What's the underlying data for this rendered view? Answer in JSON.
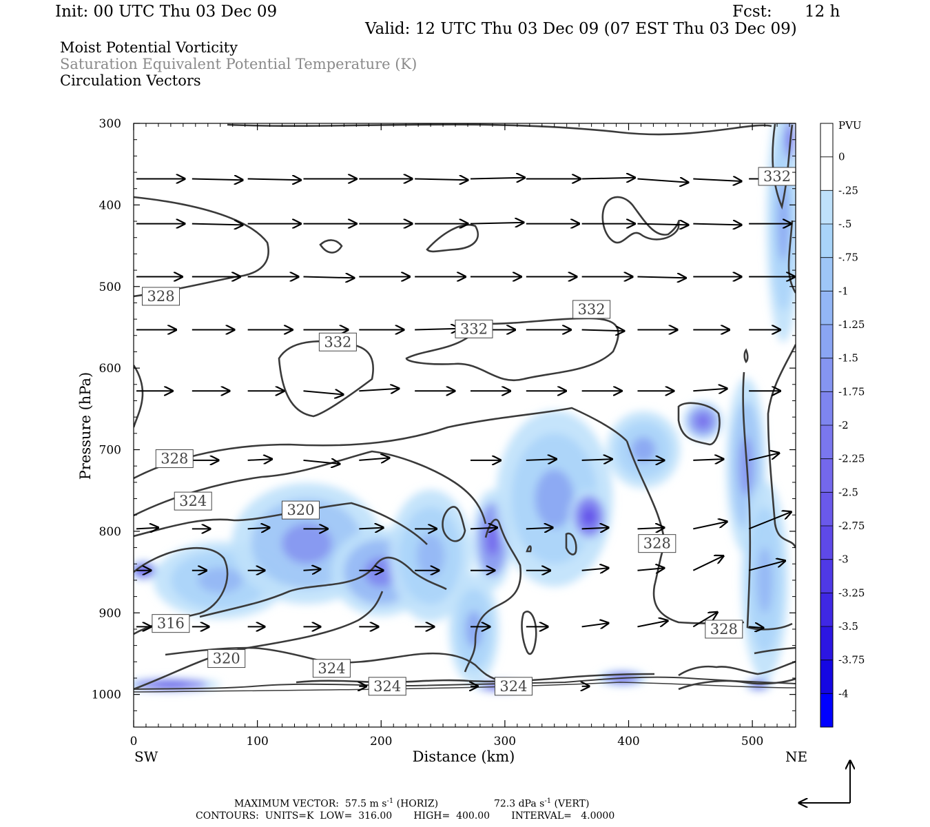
{
  "header": {
    "init": "Init: 00 UTC Thu 03 Dec 09",
    "fcst_label": "Fcst:",
    "fcst_value": "12 h",
    "valid": "Valid: 12 UTC Thu 03 Dec 09 (07 EST Thu 03 Dec 09)"
  },
  "legend_lines": [
    "Moist Potential Vorticity",
    "Saturation Equivalent Potential Temperature (K)",
    "Circulation Vectors"
  ],
  "colors": {
    "vector": "#000000",
    "contour": "#3a3a3a",
    "pv_light": "#bfe1fb",
    "pv_dark": "#0000ff"
  },
  "chart_data": {
    "type": "heatmap",
    "xlabel": "Distance (km)",
    "ylabel": "Pressure (hPa)",
    "xlim": [
      0,
      535
    ],
    "ylim": [
      1040,
      300
    ],
    "x_ticks": [
      0,
      100,
      200,
      300,
      400,
      500
    ],
    "y_ticks": [
      300,
      400,
      500,
      600,
      700,
      800,
      900,
      1000
    ],
    "x_end_labels": {
      "left": "SW",
      "right": "NE"
    },
    "colorbar": {
      "unit": "PVU",
      "labels": [
        "0",
        "-.25",
        "-.5",
        "-.75",
        "-1",
        "-1.25",
        "-1.5",
        "-1.75",
        "-2",
        "-2.25",
        "-2.5",
        "-2.75",
        "-3",
        "-3.25",
        "-3.5",
        "-3.75",
        "-4"
      ],
      "colors": [
        "#ffffff",
        "#ffffff",
        "#bfe1fb",
        "#a9d4f9",
        "#9ec6f7",
        "#93b6f5",
        "#8aa5f3",
        "#8595f1",
        "#7e85ef",
        "#7a77ee",
        "#7468ec",
        "#6a59ea",
        "#5e49e8",
        "#4f39e6",
        "#3f28e4",
        "#2c16e2",
        "#1507e2",
        "#0000ff"
      ]
    },
    "contour_labels": [
      {
        "text": "332",
        "x": 520,
        "p": 365
      },
      {
        "text": "328",
        "x": 22,
        "p": 512
      },
      {
        "text": "332",
        "x": 165,
        "p": 568
      },
      {
        "text": "332",
        "x": 275,
        "p": 552
      },
      {
        "text": "332",
        "x": 370,
        "p": 528
      },
      {
        "text": "328",
        "x": 33,
        "p": 711
      },
      {
        "text": "324",
        "x": 48,
        "p": 763
      },
      {
        "text": "320",
        "x": 135,
        "p": 774
      },
      {
        "text": "328",
        "x": 423,
        "p": 815
      },
      {
        "text": "316",
        "x": 30,
        "p": 913
      },
      {
        "text": "328",
        "x": 477,
        "p": 920
      },
      {
        "text": "320",
        "x": 75,
        "p": 956
      },
      {
        "text": "324",
        "x": 160,
        "p": 968
      },
      {
        "text": "324",
        "x": 205,
        "p": 990
      },
      {
        "text": "324",
        "x": 307,
        "p": 990
      }
    ],
    "pv_blobs": [
      {
        "x": 8,
        "p": 848,
        "rx": 9,
        "rp": 9,
        "level": 12
      },
      {
        "x": 70,
        "p": 860,
        "rx": 40,
        "rp": 35,
        "level": 4
      },
      {
        "x": 140,
        "p": 815,
        "rx": 45,
        "rp": 55,
        "level": 6
      },
      {
        "x": 200,
        "p": 850,
        "rx": 30,
        "rp": 40,
        "level": 7
      },
      {
        "x": 240,
        "p": 830,
        "rx": 25,
        "rp": 60,
        "level": 4
      },
      {
        "x": 290,
        "p": 810,
        "rx": 12,
        "rp": 45,
        "level": 9
      },
      {
        "x": 275,
        "p": 920,
        "rx": 15,
        "rp": 50,
        "level": 5
      },
      {
        "x": 340,
        "p": 760,
        "rx": 35,
        "rp": 80,
        "level": 5
      },
      {
        "x": 368,
        "p": 782,
        "rx": 12,
        "rp": 25,
        "level": 11
      },
      {
        "x": 412,
        "p": 700,
        "rx": 22,
        "rp": 35,
        "level": 5
      },
      {
        "x": 460,
        "p": 665,
        "rx": 12,
        "rp": 18,
        "level": 9
      },
      {
        "x": 495,
        "p": 720,
        "rx": 12,
        "rp": 80,
        "level": 6
      },
      {
        "x": 510,
        "p": 860,
        "rx": 14,
        "rp": 90,
        "level": 4
      },
      {
        "x": 525,
        "p": 420,
        "rx": 10,
        "rp": 110,
        "level": 5
      },
      {
        "x": 530,
        "p": 320,
        "rx": 4,
        "rp": 25,
        "level": 10
      },
      {
        "x": 30,
        "p": 988,
        "rx": 30,
        "rp": 6,
        "level": 12
      },
      {
        "x": 295,
        "p": 990,
        "rx": 15,
        "rp": 5,
        "level": 12
      },
      {
        "x": 395,
        "p": 980,
        "rx": 15,
        "rp": 7,
        "level": 10
      },
      {
        "x": 505,
        "p": 988,
        "rx": 8,
        "rp": 6,
        "level": 10
      }
    ],
    "vectors": [
      {
        "x": 0,
        "p": 368,
        "u": 40,
        "w": 0
      },
      {
        "x": 45,
        "p": 368,
        "u": 42,
        "w": -1
      },
      {
        "x": 90,
        "p": 368,
        "u": 44,
        "w": -1
      },
      {
        "x": 135,
        "p": 368,
        "u": 44,
        "w": 0
      },
      {
        "x": 180,
        "p": 368,
        "u": 44,
        "w": 0
      },
      {
        "x": 225,
        "p": 368,
        "u": 44,
        "w": -1
      },
      {
        "x": 270,
        "p": 368,
        "u": 45,
        "w": 1
      },
      {
        "x": 315,
        "p": 368,
        "u": 45,
        "w": 0
      },
      {
        "x": 360,
        "p": 368,
        "u": 44,
        "w": 1
      },
      {
        "x": 405,
        "p": 368,
        "u": 42,
        "w": -3
      },
      {
        "x": 450,
        "p": 368,
        "u": 40,
        "w": -2
      },
      {
        "x": 495,
        "p": 368,
        "u": 35,
        "w": 0
      },
      {
        "x": 0,
        "p": 423,
        "u": 40,
        "w": 0
      },
      {
        "x": 45,
        "p": 423,
        "u": 42,
        "w": -1
      },
      {
        "x": 90,
        "p": 423,
        "u": 44,
        "w": 0
      },
      {
        "x": 135,
        "p": 423,
        "u": 44,
        "w": 0
      },
      {
        "x": 180,
        "p": 423,
        "u": 44,
        "w": 0
      },
      {
        "x": 225,
        "p": 423,
        "u": 44,
        "w": 0
      },
      {
        "x": 270,
        "p": 423,
        "u": 44,
        "w": 1
      },
      {
        "x": 315,
        "p": 423,
        "u": 44,
        "w": 0
      },
      {
        "x": 360,
        "p": 423,
        "u": 44,
        "w": 0
      },
      {
        "x": 405,
        "p": 423,
        "u": 42,
        "w": -1
      },
      {
        "x": 450,
        "p": 423,
        "u": 40,
        "w": -1
      },
      {
        "x": 495,
        "p": 423,
        "u": 35,
        "w": 0
      },
      {
        "x": 0,
        "p": 488,
        "u": 38,
        "w": 0
      },
      {
        "x": 45,
        "p": 488,
        "u": 40,
        "w": 0
      },
      {
        "x": 90,
        "p": 488,
        "u": 42,
        "w": 0
      },
      {
        "x": 135,
        "p": 488,
        "u": 42,
        "w": -1
      },
      {
        "x": 180,
        "p": 488,
        "u": 42,
        "w": 0
      },
      {
        "x": 225,
        "p": 488,
        "u": 42,
        "w": 0
      },
      {
        "x": 270,
        "p": 488,
        "u": 42,
        "w": 0
      },
      {
        "x": 315,
        "p": 488,
        "u": 42,
        "w": 0
      },
      {
        "x": 360,
        "p": 488,
        "u": 42,
        "w": 0
      },
      {
        "x": 405,
        "p": 488,
        "u": 40,
        "w": -1
      },
      {
        "x": 450,
        "p": 488,
        "u": 40,
        "w": 0
      },
      {
        "x": 495,
        "p": 488,
        "u": 38,
        "w": 0
      },
      {
        "x": 0,
        "p": 553,
        "u": 33,
        "w": 0
      },
      {
        "x": 45,
        "p": 553,
        "u": 35,
        "w": 0
      },
      {
        "x": 90,
        "p": 553,
        "u": 37,
        "w": 0
      },
      {
        "x": 135,
        "p": 553,
        "u": 37,
        "w": 0
      },
      {
        "x": 180,
        "p": 553,
        "u": 37,
        "w": 0
      },
      {
        "x": 225,
        "p": 553,
        "u": 37,
        "w": 1
      },
      {
        "x": 270,
        "p": 553,
        "u": 37,
        "w": 0
      },
      {
        "x": 315,
        "p": 553,
        "u": 37,
        "w": 0
      },
      {
        "x": 360,
        "p": 553,
        "u": 35,
        "w": -1
      },
      {
        "x": 405,
        "p": 553,
        "u": 33,
        "w": 0
      },
      {
        "x": 450,
        "p": 553,
        "u": 30,
        "w": 0
      },
      {
        "x": 495,
        "p": 553,
        "u": 26,
        "w": 0
      },
      {
        "x": 0,
        "p": 628,
        "u": 30,
        "w": 0
      },
      {
        "x": 45,
        "p": 628,
        "u": 31,
        "w": 0
      },
      {
        "x": 90,
        "p": 628,
        "u": 30,
        "w": 0
      },
      {
        "x": 135,
        "p": 628,
        "u": 33,
        "w": -3
      },
      {
        "x": 180,
        "p": 628,
        "u": 33,
        "w": 2
      },
      {
        "x": 225,
        "p": 628,
        "u": 33,
        "w": 0
      },
      {
        "x": 270,
        "p": 628,
        "u": 33,
        "w": 0
      },
      {
        "x": 315,
        "p": 628,
        "u": 33,
        "w": 0
      },
      {
        "x": 360,
        "p": 628,
        "u": 33,
        "w": 0
      },
      {
        "x": 405,
        "p": 628,
        "u": 30,
        "w": 0
      },
      {
        "x": 450,
        "p": 628,
        "u": 28,
        "w": 2
      },
      {
        "x": 495,
        "p": 628,
        "u": 26,
        "w": 0
      },
      {
        "x": 45,
        "p": 713,
        "u": 22,
        "w": 0
      },
      {
        "x": 90,
        "p": 713,
        "u": 20,
        "w": 1
      },
      {
        "x": 135,
        "p": 713,
        "u": 30,
        "w": -3
      },
      {
        "x": 180,
        "p": 713,
        "u": 25,
        "w": 2
      },
      {
        "x": 270,
        "p": 713,
        "u": 25,
        "w": 0
      },
      {
        "x": 315,
        "p": 713,
        "u": 25,
        "w": 1
      },
      {
        "x": 360,
        "p": 713,
        "u": 25,
        "w": 1
      },
      {
        "x": 405,
        "p": 713,
        "u": 22,
        "w": 0
      },
      {
        "x": 450,
        "p": 713,
        "u": 25,
        "w": 1
      },
      {
        "x": 495,
        "p": 713,
        "u": 25,
        "w": 6
      },
      {
        "x": 0,
        "p": 797,
        "u": 18,
        "w": 1
      },
      {
        "x": 45,
        "p": 797,
        "u": 15,
        "w": 0
      },
      {
        "x": 90,
        "p": 797,
        "u": 18,
        "w": 1
      },
      {
        "x": 135,
        "p": 797,
        "u": 20,
        "w": 0
      },
      {
        "x": 180,
        "p": 797,
        "u": 20,
        "w": 1
      },
      {
        "x": 225,
        "p": 797,
        "u": 18,
        "w": 0
      },
      {
        "x": 270,
        "p": 797,
        "u": 22,
        "w": 1
      },
      {
        "x": 315,
        "p": 797,
        "u": 22,
        "w": 1
      },
      {
        "x": 360,
        "p": 797,
        "u": 22,
        "w": 1
      },
      {
        "x": 405,
        "p": 797,
        "u": 22,
        "w": 1
      },
      {
        "x": 450,
        "p": 797,
        "u": 28,
        "w": 6
      },
      {
        "x": 495,
        "p": 797,
        "u": 35,
        "w": 14
      },
      {
        "x": 0,
        "p": 848,
        "u": 12,
        "w": 0
      },
      {
        "x": 45,
        "p": 848,
        "u": 12,
        "w": 0
      },
      {
        "x": 90,
        "p": 848,
        "u": 14,
        "w": 0
      },
      {
        "x": 135,
        "p": 848,
        "u": 14,
        "w": 1
      },
      {
        "x": 180,
        "p": 848,
        "u": 20,
        "w": 0
      },
      {
        "x": 225,
        "p": 848,
        "u": 20,
        "w": 0
      },
      {
        "x": 270,
        "p": 848,
        "u": 20,
        "w": 0
      },
      {
        "x": 315,
        "p": 848,
        "u": 20,
        "w": 0
      },
      {
        "x": 360,
        "p": 848,
        "u": 22,
        "w": 2
      },
      {
        "x": 405,
        "p": 848,
        "u": 22,
        "w": 2
      },
      {
        "x": 450,
        "p": 848,
        "u": 25,
        "w": 12
      },
      {
        "x": 495,
        "p": 848,
        "u": 30,
        "w": 8
      },
      {
        "x": 0,
        "p": 917,
        "u": 12,
        "w": 0
      },
      {
        "x": 45,
        "p": 917,
        "u": 14,
        "w": 0
      },
      {
        "x": 90,
        "p": 917,
        "u": 14,
        "w": 0
      },
      {
        "x": 135,
        "p": 917,
        "u": 14,
        "w": 0
      },
      {
        "x": 180,
        "p": 917,
        "u": 16,
        "w": 0
      },
      {
        "x": 225,
        "p": 917,
        "u": 16,
        "w": 0
      },
      {
        "x": 270,
        "p": 917,
        "u": 16,
        "w": 0
      },
      {
        "x": 315,
        "p": 917,
        "u": 18,
        "w": 0
      },
      {
        "x": 360,
        "p": 917,
        "u": 22,
        "w": 3
      },
      {
        "x": 405,
        "p": 917,
        "u": 25,
        "w": 5
      },
      {
        "x": 450,
        "p": 917,
        "u": 20,
        "w": 12
      },
      {
        "x": 495,
        "p": 917,
        "u": 12,
        "w": -1
      },
      {
        "x": 180,
        "p": 990,
        "u": 6,
        "w": 0
      },
      {
        "x": 270,
        "p": 990,
        "u": 6,
        "w": 0
      },
      {
        "x": 360,
        "p": 990,
        "u": 6,
        "w": 0
      }
    ],
    "reference_vectors": {
      "horizontal_m_s": 57.5,
      "vertical_dpa_s": 72.3
    },
    "footer": {
      "max_vector_label": "MAXIMUM VECTOR:",
      "max_vector_horiz": "57.5 m s",
      "max_vector_horiz_unit": "(HORIZ)",
      "max_vector_vert": "72.3 dPa s",
      "max_vector_vert_unit": "(VERT)",
      "exponent": "-1",
      "contours_text": "CONTOURS:  UNITS=K  LOW=  316.00       HIGH=  400.00       INTERVAL=   4.0000"
    }
  }
}
